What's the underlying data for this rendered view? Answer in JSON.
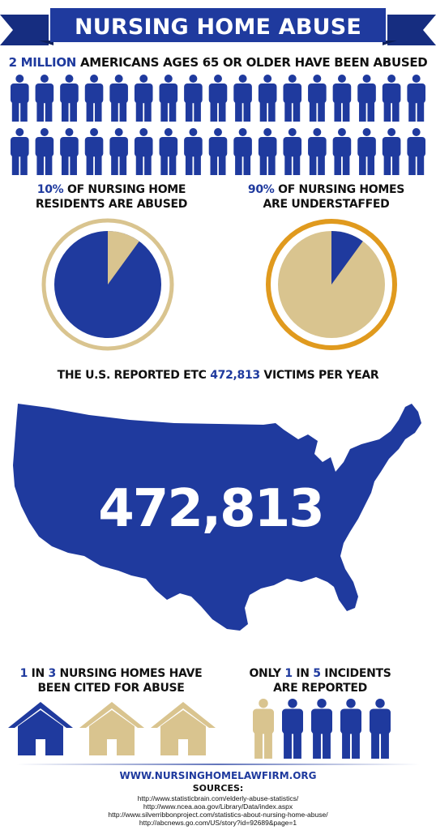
{
  "title": "NURSING HOME ABUSE",
  "stat1": {
    "number": "2 MILLION",
    "text": " AMERICANS AGES 65 OR OLDER HAVE BEEN ABUSED",
    "people_count": 34
  },
  "pie1": {
    "pct": "10%",
    "line1": " OF NURSING HOME",
    "line2": "RESIDENTS ARE ABUSED",
    "fraction": 0.1
  },
  "pie2": {
    "pct": "90%",
    "line1": " OF NURSING HOMES",
    "line2": "ARE UNDERSTAFFED",
    "fraction": 0.9
  },
  "victims": {
    "prefix": "THE U.S. REPORTED ETC ",
    "number": "472,813",
    "suffix": " VICTIMS PER YEAR",
    "map_number": "472,813"
  },
  "cited": {
    "n": "1",
    "mid": " IN ",
    "d": "3",
    "line1_rest": " NURSING HOMES HAVE",
    "line2": "BEEN CITED FOR ABUSE"
  },
  "incidents": {
    "pre": "ONLY ",
    "n": "1",
    "mid": " IN ",
    "d": "5",
    "rest": " INCIDENTS",
    "line2": "ARE REPORTED"
  },
  "footer": {
    "website": "WWW.NURSINGHOMELAWFIRM.ORG",
    "sources_label": "SOURCES:"
  },
  "sources": [
    "http://www.statisticbrain.com/elderly-abuse-statistics/",
    "http://www.ncea.aoa.gov/Library/Data/index.aspx",
    "http://www.silverribbonproject.com/statistics-about-nursing-home-abuse/",
    "http://abcnews.go.com/US/story?id=92689&page=1"
  ],
  "colors": {
    "blue": "#1f3a9e",
    "tan": "#d9c48f",
    "orange": "#e09a1e",
    "dark_blue": "#162d80"
  }
}
